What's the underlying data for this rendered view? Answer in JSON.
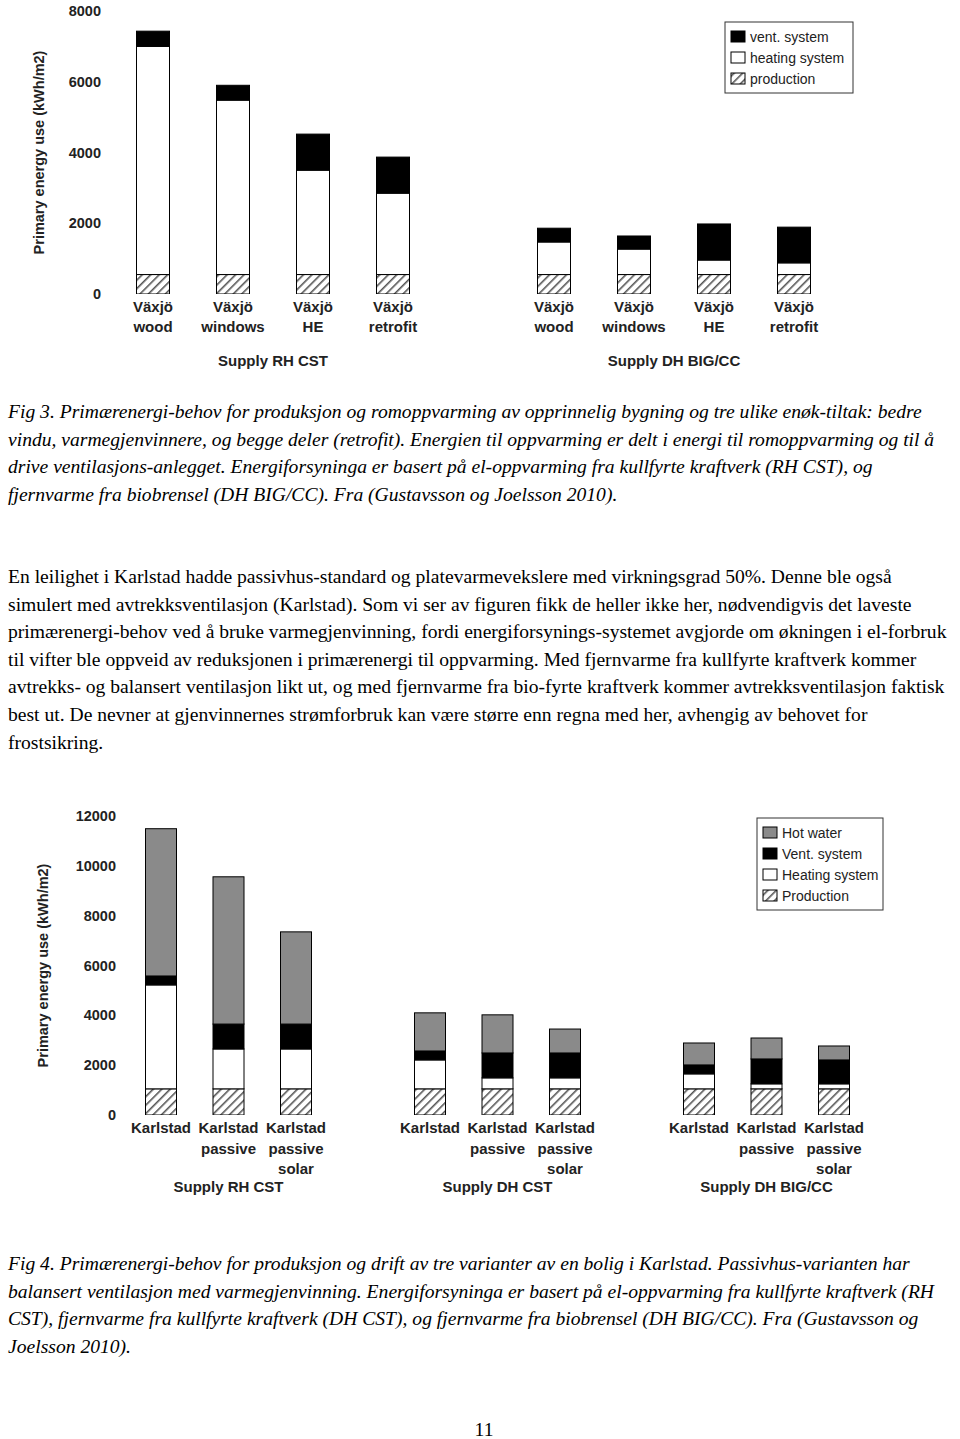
{
  "chart_data": [
    {
      "type": "bar",
      "stacked": true,
      "legend": "upper right",
      "y_label": "Primary energy use (kWh/m2)",
      "categories": [
        "Växjö wood",
        "Växjö windows",
        "Växjö HE",
        "Växjö retrofit",
        "Växjö wood",
        "Växjö windows",
        "Växjö HE",
        "Växjö retrofit"
      ],
      "groups": [
        "Supply RH CST",
        "Supply DH BIG/CC"
      ],
      "ylim": [
        0,
        8000
      ],
      "yticks": [
        0,
        2000,
        4000,
        6000,
        8000
      ],
      "series": [
        {
          "name": "production",
          "color": "#555555",
          "values": [
            550,
            550,
            550,
            550,
            550,
            550,
            550,
            550
          ]
        },
        {
          "name": "heating system",
          "color": "#ffffff",
          "values": [
            6450,
            4930,
            2950,
            2300,
            920,
            720,
            410,
            330
          ]
        },
        {
          "name": "vent. system",
          "color": "#000000",
          "values": [
            430,
            420,
            1020,
            1020,
            390,
            370,
            1020,
            1010
          ]
        }
      ],
      "caption": "Fig 3. Primærenergi-behov for produksjon og romoppvarming av opprinnelig bygning og tre ulike enøk-tiltak: bedre vindu, varmegjenvinnere, og begge deler (retrofit). Energien til oppvarming er delt i energi til romoppvarming og til å drive ventilasjons-anlegget. Energiforsyninga er basert på el-oppvarming fra kullfyrte kraftverk (RH CST), og fjernvarme fra biobrensel (DH BIG/CC). Fra (Gustavsson og Joelsson 2010)."
    },
    {
      "type": "bar",
      "stacked": true,
      "legend": "upper right",
      "y_label": "Primary energy use (kWh/m2)",
      "categories": [
        "Karlstad",
        "Karlstad passive",
        "Karlstad passive solar",
        "Karlstad",
        "Karlstad passive",
        "Karlstad passive solar",
        "Karlstad",
        "Karlstad passive",
        "Karlstad passive solar"
      ],
      "groups": [
        "Supply RH CST",
        "Supply DH CST",
        "Supply DH BIG/CC"
      ],
      "ylim": [
        0,
        12000
      ],
      "yticks": [
        0,
        2000,
        4000,
        6000,
        8000,
        10000,
        12000
      ],
      "series": [
        {
          "name": "Production",
          "color": "#555555",
          "values": [
            1050,
            1050,
            1050,
            1050,
            1050,
            1050,
            1050,
            1050,
            1050
          ]
        },
        {
          "name": "Heating system",
          "color": "#ffffff",
          "values": [
            4170,
            1600,
            1600,
            1160,
            440,
            440,
            600,
            200,
            200
          ]
        },
        {
          "name": "Vent. system",
          "color": "#000000",
          "values": [
            360,
            1000,
            1000,
            360,
            1000,
            1000,
            360,
            1000,
            960
          ]
        },
        {
          "name": "Hot water",
          "color": "#8a8a8a",
          "values": [
            5910,
            5910,
            3700,
            1530,
            1530,
            960,
            880,
            840,
            560
          ]
        }
      ],
      "caption": "Fig 4. Primærenergi-behov for produksjon og drift av tre varianter av en bolig i Karlstad. Passivhus-varianten har balansert ventilasjon med varmegjenvinning. Energiforsyninga er basert på el-oppvarming fra kullfyrte kraftverk (RH CST), fjernvarme fra kullfyrte kraftverk (DH CST), og fjernvarme fra biobrensel (DH BIG/CC). Fra (Gustavsson og Joelsson 2010)."
    }
  ],
  "paragraph": "En leilighet i Karlstad hadde passivhus-standard og platevarmevekslere med virkningsgrad 50%. Denne ble også simulert med avtrekksventilasjon (Karlstad). Som vi ser av figuren fikk de heller ikke her, nødvendigvis det laveste primærenergi-behov ved å bruke varmegjenvinning, fordi energiforsynings-systemet avgjorde om økningen i el-forbruk til vifter ble oppveid av reduksjonen i primærenergi til oppvarming. Med fjernvarme fra kullfyrte kraftverk kommer avtrekks- og balansert ventilasjon likt ut, og med fjernvarme fra bio-fyrte kraftverk kommer avtrekksventilasjon faktisk best ut. De nevner at gjenvinnernes strømforbruk kan være større enn regna med her, avhengig av behovet for frostsikring.",
  "page_number": "11"
}
